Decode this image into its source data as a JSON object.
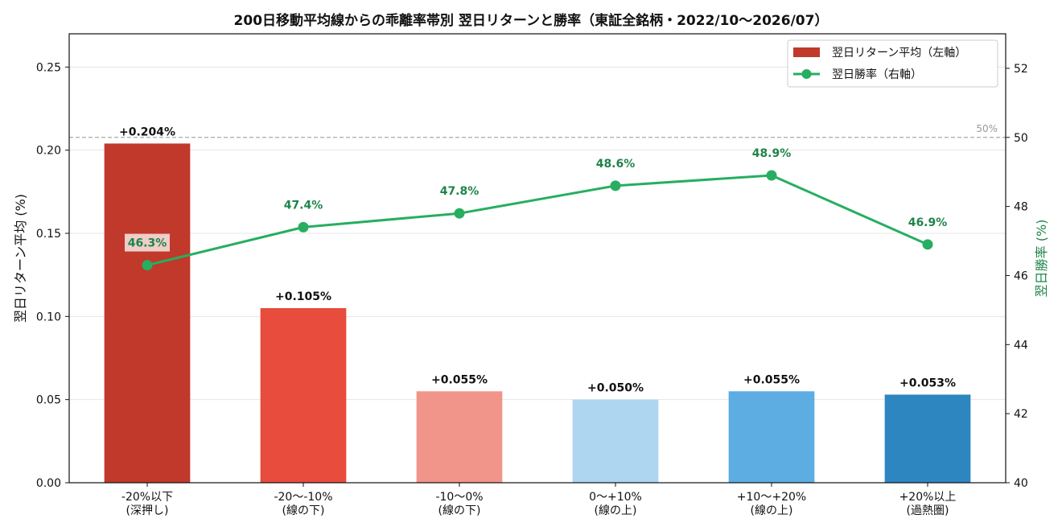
{
  "chart_data": {
    "type": "bar+line",
    "title": "200日移動平均線からの乖離率帯別 翌日リターンと勝率（東証全銘柄・2022/10〜2026/07）",
    "categories": [
      [
        "-20%以下",
        "(深押し)"
      ],
      [
        "-20〜-10%",
        "(線の下)"
      ],
      [
        "-10〜0%",
        "(線の下)"
      ],
      [
        "0〜+10%",
        "(線の上)"
      ],
      [
        "+10〜+20%",
        "(線の上)"
      ],
      [
        "+20%以上",
        "(過熱圏)"
      ]
    ],
    "ylabel_left": "翌日リターン平均 (%)",
    "ylabel_right": "翌日勝率 (%)",
    "ylim_left": [
      0,
      0.27
    ],
    "ylim_right": [
      40,
      53
    ],
    "yticks_left": [
      "0.00",
      "0.05",
      "0.10",
      "0.15",
      "0.20",
      "0.25"
    ],
    "yticks_right": [
      "40",
      "42",
      "44",
      "46",
      "48",
      "50",
      "52"
    ],
    "grid": true,
    "legend_position": "top-right",
    "series": [
      {
        "name": "翌日リターン平均（左軸）",
        "kind": "bar",
        "axis": "left",
        "values": [
          0.204,
          0.105,
          0.055,
          0.05,
          0.055,
          0.053
        ],
        "labels": [
          "+0.204%",
          "+0.105%",
          "+0.055%",
          "+0.050%",
          "+0.055%",
          "+0.053%"
        ],
        "colors": [
          "#c0392b",
          "#e74c3c",
          "#f1948a",
          "#aed6f1",
          "#5dade2",
          "#2e86c1"
        ]
      },
      {
        "name": "翌日勝率（右軸）",
        "kind": "line",
        "axis": "right",
        "values": [
          46.3,
          47.4,
          47.8,
          48.6,
          48.9,
          46.9
        ],
        "labels": [
          "46.3%",
          "47.4%",
          "47.8%",
          "48.6%",
          "48.9%",
          "46.9%"
        ],
        "color": "#27ae60",
        "label_color": "#1e8449"
      }
    ],
    "reference_line": {
      "axis": "right",
      "value": 50,
      "label": "50%",
      "color": "#aaaaaa"
    },
    "legend_swatch_color": "#c0392b",
    "right_axis_label_color": "#1e8449"
  }
}
